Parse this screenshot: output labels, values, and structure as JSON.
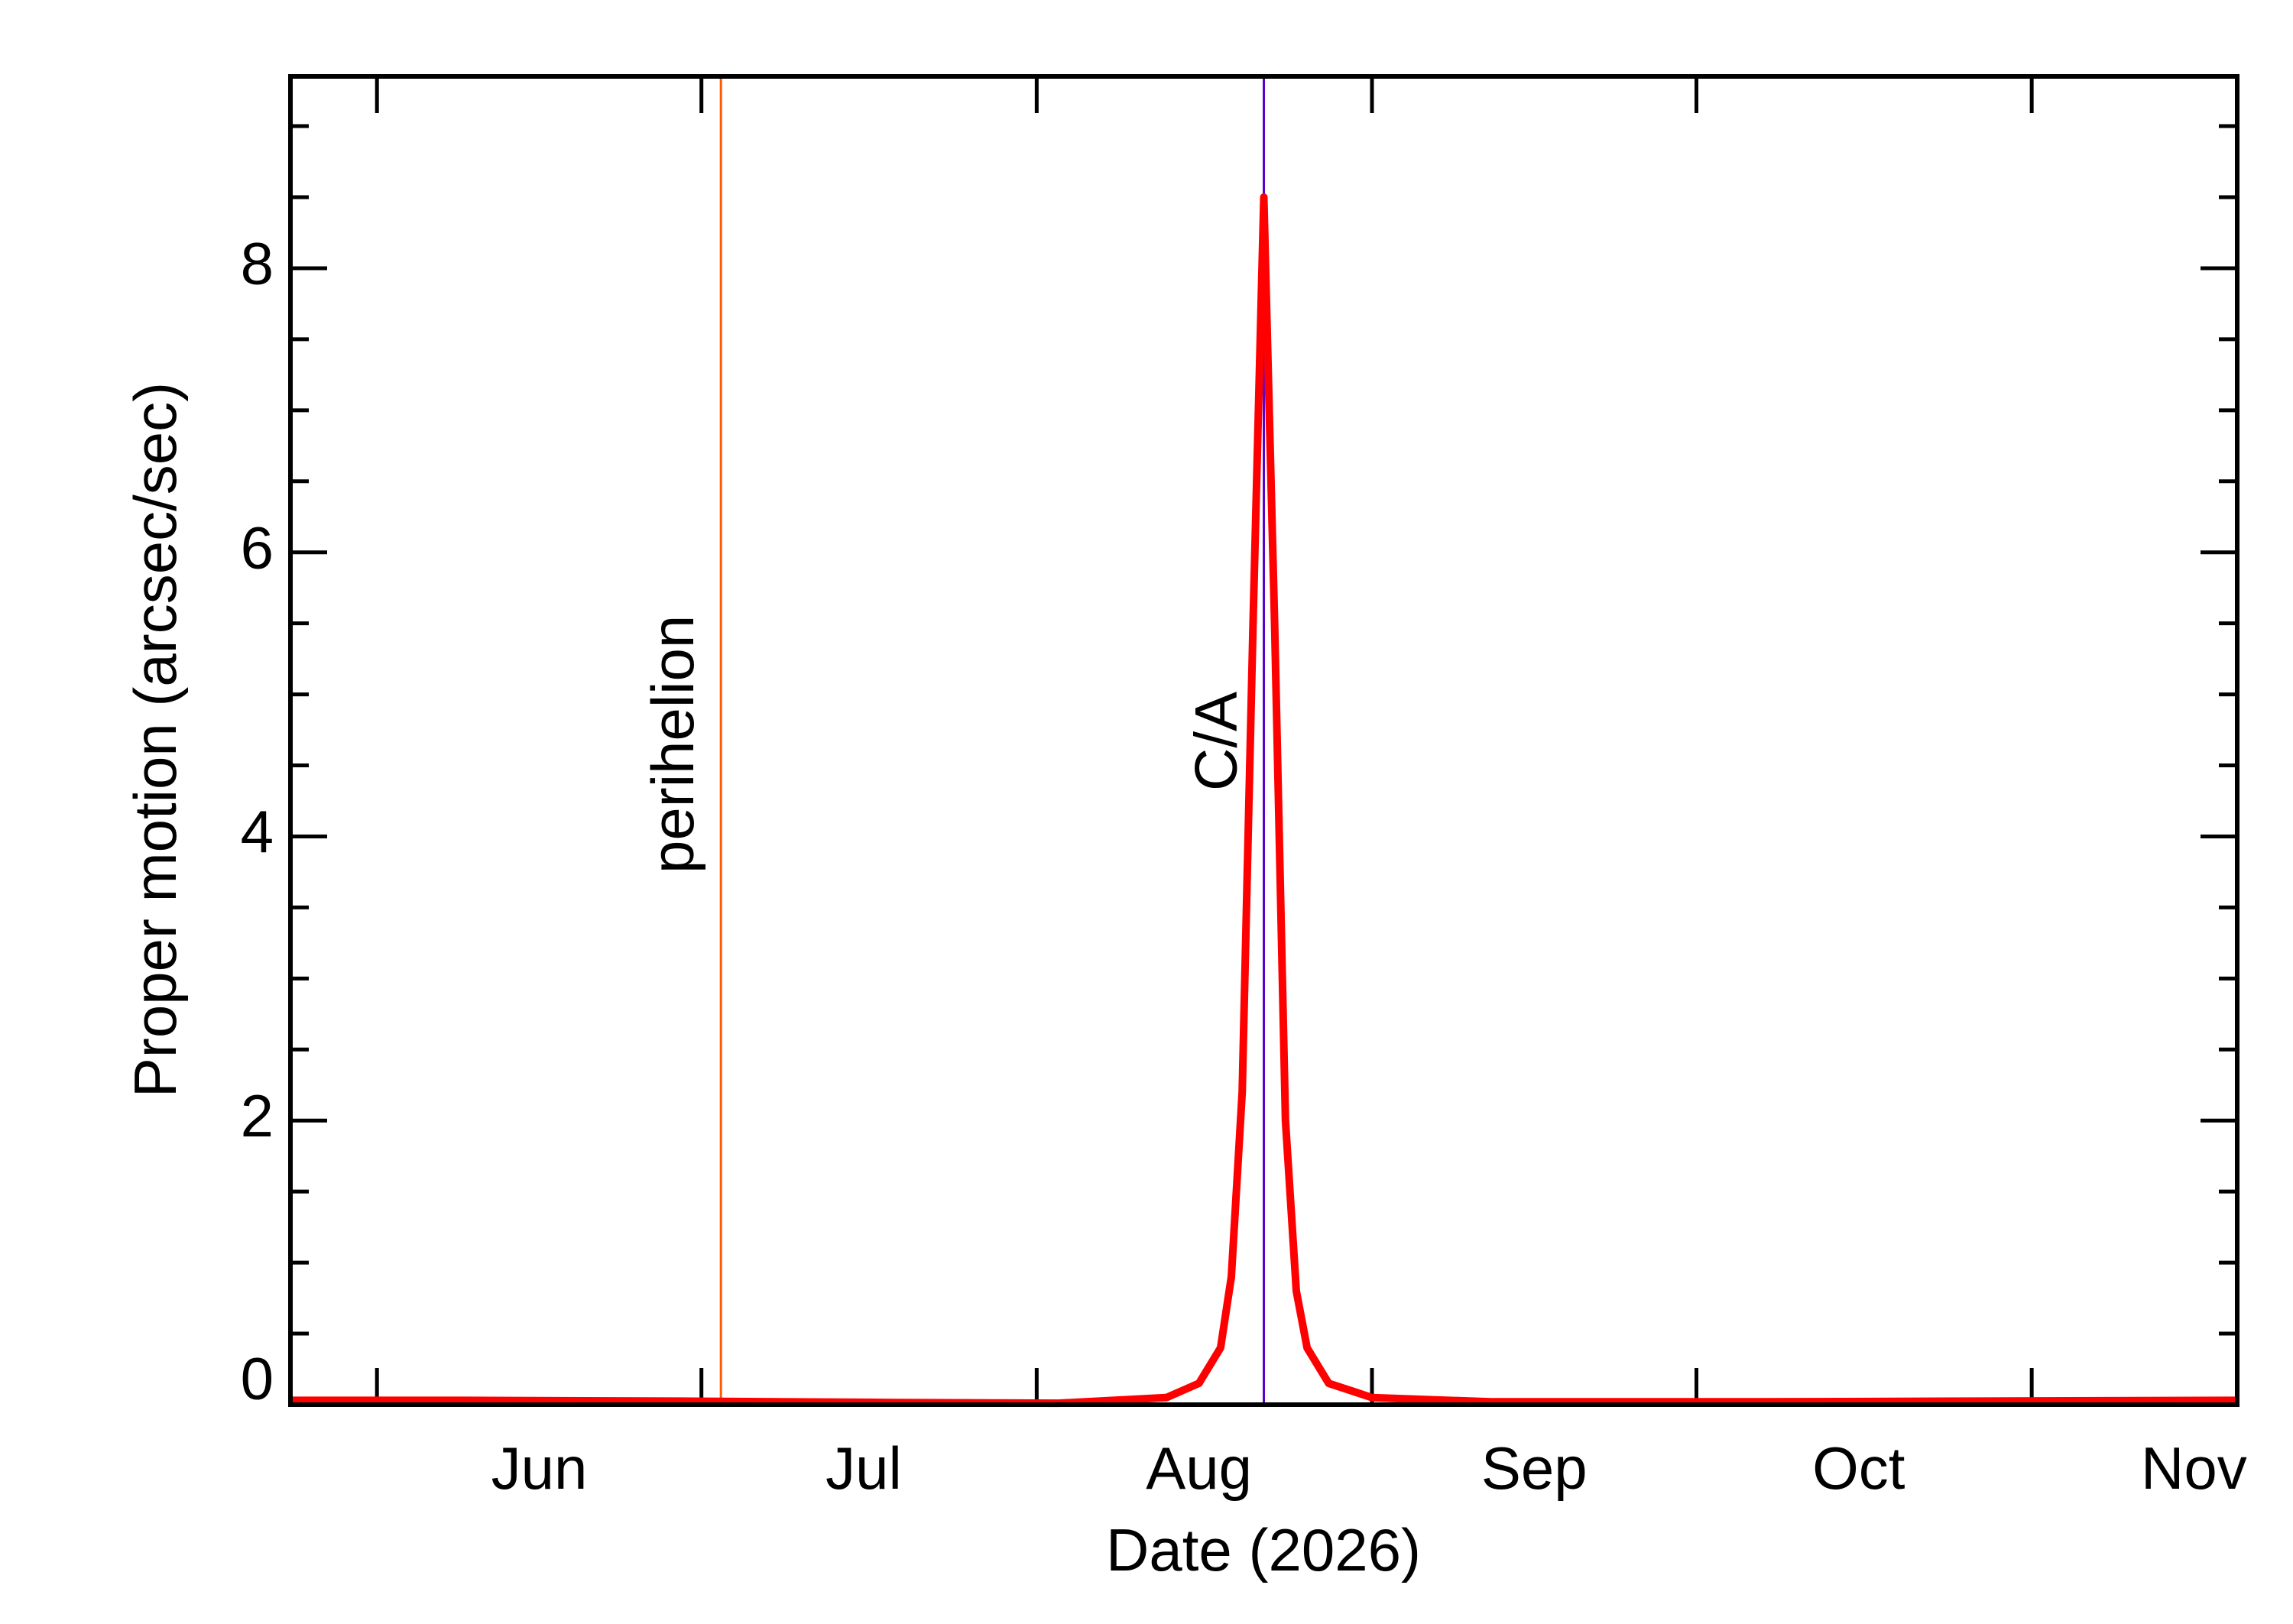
{
  "chart_data": {
    "type": "line",
    "x_label": "Date (2026)",
    "y_label": "Proper motion (arcsec/sec)",
    "x": [
      144,
      160,
      180,
      200,
      215,
      225,
      228,
      230,
      231,
      232,
      233,
      234,
      235,
      236,
      237,
      238,
      240,
      244,
      255,
      280,
      300,
      324
    ],
    "series": [
      {
        "color": "#ff0000",
        "values": [
          0.03,
          0.03,
          0.025,
          0.015,
          0.01,
          0.05,
          0.15,
          0.4,
          0.9,
          2.2,
          5.5,
          8.5,
          5.5,
          2,
          0.8,
          0.4,
          0.15,
          0.05,
          0.02,
          0.02,
          0.025,
          0.03
        ]
      }
    ],
    "xlim": [
      144,
      324
    ],
    "xticks": [
      {
        "value": 167,
        "label": "Jun"
      },
      {
        "value": 197,
        "label": "Jul"
      },
      {
        "value": 228,
        "label": "Aug"
      },
      {
        "value": 259,
        "label": "Sep"
      },
      {
        "value": 289,
        "label": "Oct"
      },
      {
        "value": 320,
        "label": "Nov"
      }
    ],
    "xtick_marks": [
      152,
      182,
      213,
      244,
      274,
      305
    ],
    "ylim": [
      0,
      9.35
    ],
    "yticks": [
      0,
      2,
      4,
      6,
      8
    ],
    "yminor_ticks": [
      0.5,
      1,
      1.5,
      2.5,
      3,
      3.5,
      4.5,
      5,
      5.5,
      6.5,
      7,
      7.5,
      8.5,
      9
    ],
    "annotations": [
      {
        "label": "perihelion",
        "x": 183.8,
        "color": "#ff5a00"
      },
      {
        "label": "C/A",
        "x": 234,
        "color": "#5a00cc"
      }
    ]
  }
}
